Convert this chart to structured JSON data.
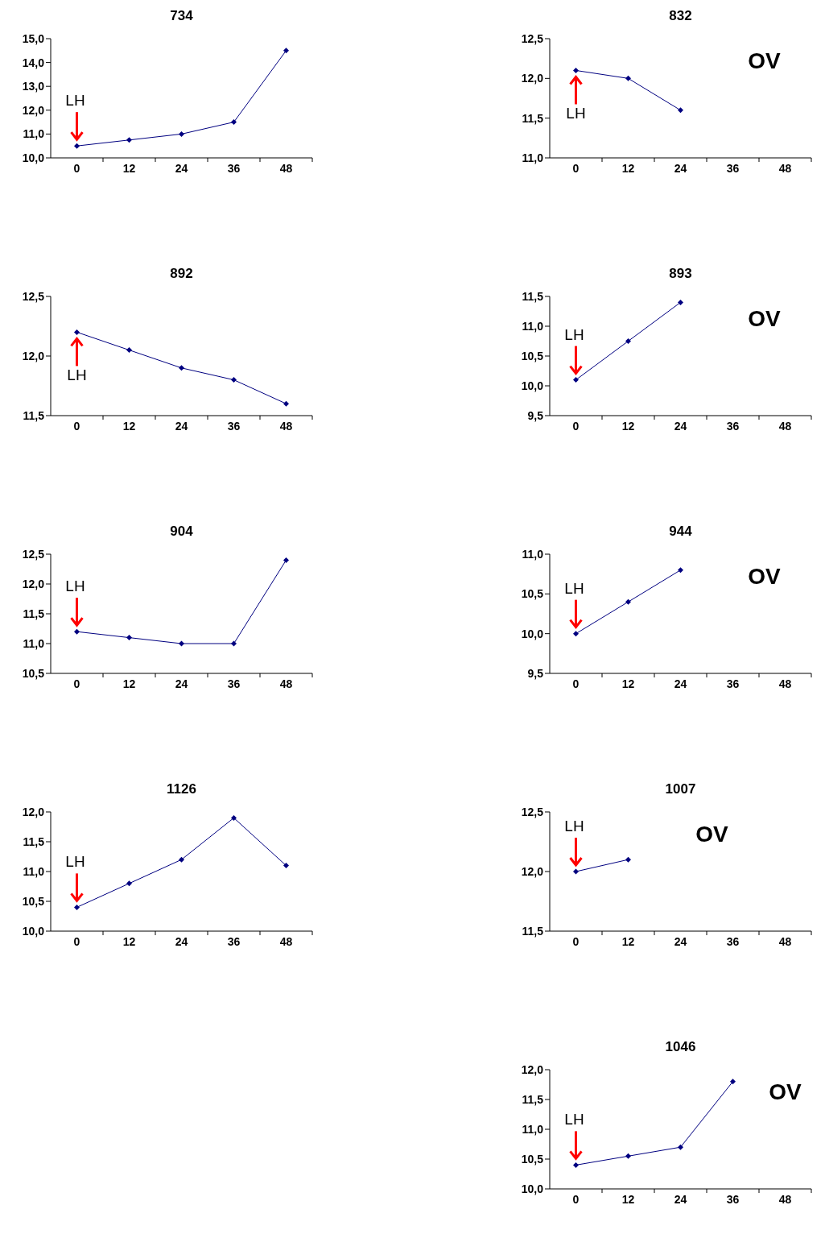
{
  "chart_data": [
    {
      "type": "line",
      "title": "734",
      "categories": [
        "0",
        "12",
        "24",
        "36",
        "48"
      ],
      "series": [
        {
          "color": "#000080",
          "values": [
            10.5,
            10.75,
            11,
            11.5,
            14.5
          ]
        }
      ],
      "ylim": [
        10,
        15
      ],
      "yticks": [
        {
          "value": 10,
          "label": "10,0"
        },
        {
          "value": 11,
          "label": "11,0"
        },
        {
          "value": 12,
          "label": "12,0"
        },
        {
          "value": 13,
          "label": "13,0"
        },
        {
          "value": 14,
          "label": "14,0"
        },
        {
          "value": 15,
          "label": "15,0"
        }
      ],
      "grid": false,
      "marker": "diamond",
      "line_style": "solid",
      "annotations": [
        {
          "text": "LH",
          "x": "0",
          "y": 10.5
        }
      ]
    },
    {
      "type": "line",
      "title": "832",
      "categories": [
        "0",
        "12",
        "24",
        "36",
        "48"
      ],
      "series": [
        {
          "color": "#000080",
          "values": [
            12.1,
            12,
            11.6,
            null,
            null
          ]
        }
      ],
      "ylim": [
        11,
        12.5
      ],
      "yticks": [
        {
          "value": 11,
          "label": "11,0"
        },
        {
          "value": 11.5,
          "label": "11,5"
        },
        {
          "value": 12,
          "label": "12,0"
        },
        {
          "value": 12.5,
          "label": "12,5"
        }
      ],
      "grid": false,
      "marker": "diamond",
      "line_style": "solid",
      "annotations": [
        {
          "text": "LH",
          "x": "0",
          "y": 12.1
        },
        "OV"
      ]
    },
    {
      "type": "line",
      "title": "892",
      "categories": [
        "0",
        "12",
        "24",
        "36",
        "48"
      ],
      "series": [
        {
          "color": "#000080",
          "values": [
            12.2,
            12.05,
            11.9,
            11.8,
            11.6
          ]
        }
      ],
      "ylim": [
        11.5,
        12.5
      ],
      "yticks": [
        {
          "value": 11.5,
          "label": "11,5"
        },
        {
          "value": 12,
          "label": "12,0"
        },
        {
          "value": 12.5,
          "label": "12,5"
        }
      ],
      "grid": false,
      "marker": "diamond",
      "line_style": "solid",
      "annotations": [
        {
          "text": "LH",
          "x": "0",
          "y": 12.2
        }
      ]
    },
    {
      "type": "line",
      "title": "893",
      "categories": [
        "0",
        "12",
        "24",
        "36",
        "48"
      ],
      "series": [
        {
          "color": "#000080",
          "values": [
            10.1,
            10.75,
            11.4,
            null,
            null
          ]
        }
      ],
      "ylim": [
        9.5,
        11.5
      ],
      "yticks": [
        {
          "value": 9.5,
          "label": "9,5"
        },
        {
          "value": 10,
          "label": "10,0"
        },
        {
          "value": 10.5,
          "label": "10,5"
        },
        {
          "value": 11,
          "label": "11,0"
        },
        {
          "value": 11.5,
          "label": "11,5"
        }
      ],
      "grid": false,
      "marker": "diamond",
      "line_style": "solid",
      "annotations": [
        {
          "text": "LH",
          "x": "0",
          "y": 10.1
        },
        "OV"
      ]
    },
    {
      "type": "line",
      "title": "904",
      "categories": [
        "0",
        "12",
        "24",
        "36",
        "48"
      ],
      "series": [
        {
          "color": "#000080",
          "values": [
            11.2,
            11.1,
            11,
            11,
            12.4
          ]
        }
      ],
      "ylim": [
        10.5,
        12.5
      ],
      "yticks": [
        {
          "value": 10.5,
          "label": "10,5"
        },
        {
          "value": 11,
          "label": "11,0"
        },
        {
          "value": 11.5,
          "label": "11,5"
        },
        {
          "value": 12,
          "label": "12,0"
        },
        {
          "value": 12.5,
          "label": "12,5"
        }
      ],
      "grid": false,
      "marker": "diamond",
      "line_style": "solid",
      "annotations": [
        {
          "text": "LH",
          "x": "0",
          "y": 11.2
        }
      ]
    },
    {
      "type": "line",
      "title": "944",
      "categories": [
        "0",
        "12",
        "24",
        "36",
        "48"
      ],
      "series": [
        {
          "color": "#000080",
          "values": [
            10,
            10.4,
            10.8,
            null,
            null
          ]
        }
      ],
      "ylim": [
        9.5,
        11
      ],
      "yticks": [
        {
          "value": 9.5,
          "label": "9,5"
        },
        {
          "value": 10,
          "label": "10,0"
        },
        {
          "value": 10.5,
          "label": "10,5"
        },
        {
          "value": 11,
          "label": "11,0"
        }
      ],
      "grid": false,
      "marker": "diamond",
      "line_style": "solid",
      "annotations": [
        {
          "text": "LH",
          "x": "0",
          "y": 10
        },
        "OV"
      ]
    },
    {
      "type": "line",
      "title": "1126",
      "categories": [
        "0",
        "12",
        "24",
        "36",
        "48"
      ],
      "series": [
        {
          "color": "#000080",
          "values": [
            10.4,
            10.8,
            11.2,
            11.9,
            11.1
          ]
        }
      ],
      "ylim": [
        10,
        12
      ],
      "yticks": [
        {
          "value": 10,
          "label": "10,0"
        },
        {
          "value": 10.5,
          "label": "10,5"
        },
        {
          "value": 11,
          "label": "11,0"
        },
        {
          "value": 11.5,
          "label": "11,5"
        },
        {
          "value": 12,
          "label": "12,0"
        }
      ],
      "grid": false,
      "marker": "diamond",
      "line_style": "solid",
      "annotations": [
        {
          "text": "LH",
          "x": "0",
          "y": 10.4
        }
      ]
    },
    {
      "type": "line",
      "title": "1007",
      "categories": [
        "0",
        "12",
        "24",
        "36",
        "48"
      ],
      "series": [
        {
          "color": "#000080",
          "values": [
            12,
            12.1,
            null,
            null,
            null
          ]
        }
      ],
      "ylim": [
        11.5,
        12.5
      ],
      "yticks": [
        {
          "value": 11.5,
          "label": "11,5"
        },
        {
          "value": 12,
          "label": "12,0"
        },
        {
          "value": 12.5,
          "label": "12,5"
        }
      ],
      "grid": false,
      "marker": "diamond",
      "line_style": "solid",
      "annotations": [
        {
          "text": "LH",
          "x": "0",
          "y": 12
        },
        "OV"
      ]
    },
    {
      "type": "line",
      "title": "1046",
      "categories": [
        "0",
        "12",
        "24",
        "36",
        "48"
      ],
      "series": [
        {
          "color": "#000080",
          "values": [
            10.4,
            10.55,
            10.7,
            11.8,
            null
          ]
        }
      ],
      "ylim": [
        10,
        12
      ],
      "yticks": [
        {
          "value": 10,
          "label": "10,0"
        },
        {
          "value": 10.5,
          "label": "10,5"
        },
        {
          "value": 11,
          "label": "11,0"
        },
        {
          "value": 11.5,
          "label": "11,5"
        },
        {
          "value": 12,
          "label": "12,0"
        }
      ],
      "grid": false,
      "marker": "diamond",
      "line_style": "solid",
      "annotations": [
        {
          "text": "LH",
          "x": "0",
          "y": 10.4
        },
        "OV"
      ]
    }
  ]
}
